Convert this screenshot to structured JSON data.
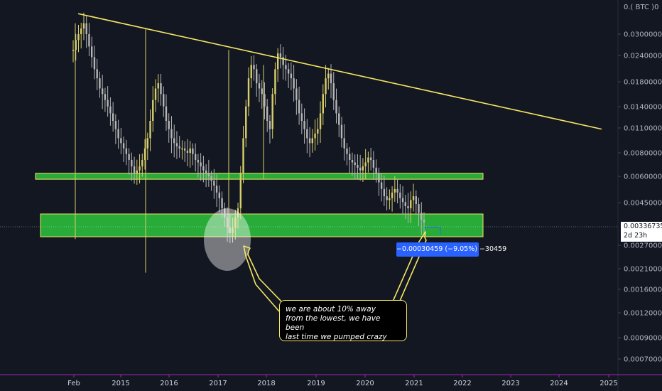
{
  "chart_data": {
    "type": "candlestick",
    "symbol_label": "0.( BTC )0",
    "x_ticks": [
      "Feb",
      "2015",
      "2016",
      "2017",
      "2018",
      "2019",
      "2020",
      "2021",
      "2022",
      "2023",
      "2024",
      "2025"
    ],
    "y_ticks": [
      "0.03000000",
      "0.02400000",
      "0.01800000",
      "0.01400000",
      "0.01100000",
      "0.00800000",
      "0.00600000",
      "0.00450000",
      "0.00270000",
      "0.00210000",
      "0.00160000",
      "0.00120000",
      "0.00090000",
      "0.00070000"
    ],
    "current_price": "0.00336735",
    "countdown": "2d 23h",
    "measure_label": "−0.00030459 (−9.05%) −30459",
    "annotation": "we are about 10% away\n from the lowest, we have been\nlast time we pumped crazy",
    "series": [
      {
        "values": [
          0.025,
          0.028,
          0.03,
          0.032,
          0.034,
          0.03,
          0.026,
          0.023,
          0.02,
          0.018,
          0.016,
          0.015,
          0.014,
          0.013,
          0.012,
          0.011,
          0.01,
          0.009,
          0.0085,
          0.008,
          0.0075,
          0.007,
          0.0065,
          0.006,
          0.0062,
          0.0065,
          0.007,
          0.008,
          0.009,
          0.011,
          0.014,
          0.016,
          0.017,
          0.015,
          0.013,
          0.011,
          0.01,
          0.009,
          0.0085,
          0.0082,
          0.008,
          0.008,
          0.0078,
          0.0076,
          0.008,
          0.0075,
          0.007,
          0.0068,
          0.0065,
          0.0062,
          0.006,
          0.0058,
          0.0055,
          0.0052,
          0.0048,
          0.0045,
          0.004,
          0.0036,
          0.0032,
          0.003,
          0.0032,
          0.0036,
          0.004,
          0.006,
          0.009,
          0.013,
          0.018,
          0.021,
          0.02,
          0.017,
          0.016,
          0.015,
          0.013,
          0.011,
          0.01,
          0.015,
          0.02,
          0.024,
          0.023,
          0.021,
          0.02,
          0.019,
          0.018,
          0.016,
          0.014,
          0.012,
          0.011,
          0.01,
          0.009,
          0.0085,
          0.009,
          0.0095,
          0.01,
          0.012,
          0.015,
          0.018,
          0.019,
          0.017,
          0.014,
          0.012,
          0.0105,
          0.009,
          0.008,
          0.0075,
          0.007,
          0.0068,
          0.0066,
          0.0064,
          0.0062,
          0.0065,
          0.0068,
          0.0072,
          0.007,
          0.0064,
          0.006,
          0.0054,
          0.005,
          0.0046,
          0.0044,
          0.0045,
          0.0048,
          0.005,
          0.0048,
          0.0045,
          0.0043,
          0.0041,
          0.004,
          0.0044,
          0.0046,
          0.0042,
          0.0038,
          0.0035,
          0.0034
        ]
      }
    ],
    "trend_line": {
      "start": [
        "Feb",
        0.038
      ],
      "end": [
        "2025",
        0.01
      ]
    },
    "zones": [
      {
        "top": 0.006,
        "bottom": 0.0056
      },
      {
        "top": 0.004,
        "bottom": 0.0029
      }
    ],
    "colors": {
      "background": "#131722",
      "trend": "#f5e663",
      "zone_fill": "#2ecc40",
      "zone_edge": "#f5e663",
      "candle": "#c9c17a",
      "label_blue": "#2962ff"
    }
  }
}
